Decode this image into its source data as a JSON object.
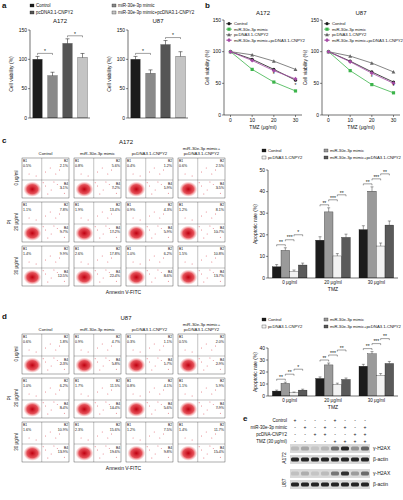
{
  "panel_labels": [
    "a",
    "b",
    "c",
    "d",
    "e"
  ],
  "chart_data": [
    {
      "type": "bar",
      "title": "A172",
      "y_label": "Cell viability (%)",
      "categories": [
        "Control",
        "miR-30e-3p mimic",
        "pcDNA3.1-CNPY2",
        "miR-30e-3p mimic+pcDNA3.1-CNPY2"
      ],
      "values": [
        100,
        72,
        127,
        103
      ],
      "errors": [
        5,
        6,
        8,
        7
      ],
      "colors": [
        "#1c1c1c",
        "#8a8a8a",
        "#555555",
        "#c4c4c4"
      ],
      "ylim": [
        0,
        150
      ],
      "yticks": [
        0,
        50,
        100,
        150
      ],
      "legend": "top",
      "tick_labels": "y",
      "annotations": [
        {
          "text": "*",
          "between": [
            0,
            1
          ]
        },
        {
          "text": "*",
          "between": [
            2,
            3
          ]
        }
      ]
    },
    {
      "type": "bar",
      "title": "U87",
      "y_label": "Cell viability (%)",
      "categories": [
        null,
        null,
        null,
        null
      ],
      "values": [
        100,
        76,
        125,
        105
      ],
      "errors": [
        5,
        6,
        7,
        8
      ],
      "colors": [
        "#1c1c1c",
        "#8a8a8a",
        "#555555",
        "#c4c4c4"
      ],
      "ylim": [
        0,
        150
      ],
      "yticks": [
        0,
        50,
        100,
        150
      ],
      "tick_labels": "y",
      "annotations": [
        {
          "text": "*",
          "between": [
            0,
            1
          ]
        },
        {
          "text": "*",
          "between": [
            2,
            3
          ]
        }
      ]
    },
    {
      "type": "line",
      "title": "A172",
      "x_label": "TMZ (μg/ml)",
      "y_label": "Cell viability (%)",
      "x": [
        0,
        10,
        20,
        30
      ],
      "xlim": [
        -3,
        33
      ],
      "xticks": [
        0,
        10,
        20,
        30
      ],
      "ylim": [
        0,
        150
      ],
      "yticks": [
        0,
        50,
        100,
        150
      ],
      "legend": "top",
      "series": [
        {
          "name": "Control",
          "color": "#1c1c1c",
          "marker": "circle",
          "values": [
            100,
            88,
            72,
            55
          ]
        },
        {
          "name": "miR-30e-3p mimic",
          "color": "#3cb44b",
          "marker": "square",
          "values": [
            100,
            72,
            52,
            38
          ]
        },
        {
          "name": "pcDNA3.1-CNPY2",
          "color": "#666666",
          "marker": "triangle",
          "values": [
            100,
            95,
            85,
            72
          ]
        },
        {
          "name": "miR-30e-3p mimic+pcDNA3.1-CNPY2",
          "color": "#a64ca6",
          "marker": "diamond",
          "values": [
            100,
            86,
            70,
            57
          ]
        }
      ],
      "annotations": [
        {
          "text": "*",
          "x": 20,
          "y": 61
        },
        {
          "text": "*",
          "x": 30,
          "y": 45
        }
      ]
    },
    {
      "type": "line",
      "title": "U87",
      "x_label": "TMZ (μg/ml)",
      "y_label": "Cell viability (%)",
      "x": [
        0,
        10,
        20,
        30
      ],
      "xlim": [
        -3,
        33
      ],
      "xticks": [
        0,
        10,
        20,
        30
      ],
      "ylim": [
        0,
        150
      ],
      "yticks": [
        0,
        50,
        100,
        150
      ],
      "legend": "top",
      "series": [
        {
          "name": "Control",
          "color": "#1c1c1c",
          "marker": "circle",
          "values": [
            100,
            85,
            68,
            52
          ]
        },
        {
          "name": "miR-30e-3p mimic",
          "color": "#3cb44b",
          "marker": "square",
          "values": [
            100,
            70,
            48,
            35
          ]
        },
        {
          "name": "pcDNA3.1-CNPY2",
          "color": "#666666",
          "marker": "triangle",
          "values": [
            100,
            93,
            82,
            68
          ]
        },
        {
          "name": "miR-30e-3p mimic+pcDNA3.1-CNPY2",
          "color": "#a64ca6",
          "marker": "diamond",
          "values": [
            100,
            84,
            66,
            50
          ]
        }
      ],
      "annotations": [
        {
          "text": "*",
          "x": 20,
          "y": 57
        },
        {
          "text": "*",
          "x": 30,
          "y": 42
        }
      ]
    },
    {
      "type": "bar",
      "x_label": "TMZ",
      "y_label": "Apoptotic rate (%)",
      "categories": [
        "0 μg/ml",
        "20 μg/ml",
        "30 μg/ml"
      ],
      "ylim": [
        0,
        50
      ],
      "yticks": [
        0,
        10,
        20,
        30,
        40,
        50
      ],
      "legend": "top",
      "series": [
        {
          "name": "Control",
          "color": "#1c1c1c",
          "values": [
            5.2,
            17.5,
            22.4
          ],
          "errors": [
            1.0,
            1.6,
            1.8
          ]
        },
        {
          "name": "miR-30e-3p mimic",
          "color": "#9a9a9a",
          "values": [
            12.8,
            30.6,
            40.2
          ],
          "errors": [
            1.2,
            1.9,
            2.0
          ]
        },
        {
          "name": "pcDNA3.1-CNPY2",
          "color": "#f2f2f2",
          "values": [
            3.1,
            10.2,
            14.8
          ],
          "errors": [
            0.6,
            1.1,
            1.4
          ]
        },
        {
          "name": "miR-30e-3p mimic+pcDNA3.1-CNPY2",
          "color": "#5a5a5a",
          "values": [
            6.0,
            18.8,
            24.5
          ],
          "errors": [
            0.9,
            1.5,
            1.9
          ]
        }
      ],
      "annotations": [
        {
          "text": "**",
          "group": 0,
          "between": [
            0,
            1
          ]
        },
        {
          "text": "***",
          "group": 0,
          "between": [
            1,
            2
          ]
        },
        {
          "text": "*",
          "group": 0,
          "between": [
            2,
            3
          ]
        },
        {
          "text": "**",
          "group": 1,
          "between": [
            0,
            1
          ]
        },
        {
          "text": "***",
          "group": 1,
          "between": [
            1,
            2
          ]
        },
        {
          "text": "**",
          "group": 1,
          "between": [
            2,
            3
          ]
        },
        {
          "text": "**",
          "group": 2,
          "between": [
            0,
            1
          ]
        },
        {
          "text": "***",
          "group": 2,
          "between": [
            1,
            2
          ]
        },
        {
          "text": "**",
          "group": 2,
          "between": [
            2,
            3
          ]
        }
      ]
    },
    {
      "type": "bar",
      "x_label": "TMZ",
      "y_label": "Apoptotic rate (%)",
      "categories": [
        "0 μg/ml",
        "20 μg/ml",
        "30 μg/ml"
      ],
      "ylim": [
        0,
        40
      ],
      "yticks": [
        0,
        10,
        20,
        30,
        40
      ],
      "legend": "top",
      "series": [
        {
          "name": "Control",
          "color": "#1c1c1c",
          "values": [
            4.1,
            14.6,
            24.8
          ],
          "errors": [
            0.8,
            1.3,
            1.6
          ]
        },
        {
          "name": "miR-30e-3p mimic",
          "color": "#9a9a9a",
          "values": [
            10.5,
            25.9,
            35.2
          ],
          "errors": [
            1.0,
            1.6,
            1.8
          ]
        },
        {
          "name": "pcDNA3.1-CNPY2",
          "color": "#f2f2f2",
          "values": [
            2.8,
            9.7,
            17.3
          ],
          "errors": [
            0.5,
            1.0,
            1.4
          ]
        },
        {
          "name": "miR-30e-3p mimic+pcDNA3.1-CNPY2",
          "color": "#5a5a5a",
          "values": [
            4.9,
            13.8,
            27.1
          ],
          "errors": [
            0.8,
            1.2,
            1.7
          ]
        }
      ],
      "annotations": [
        {
          "text": "**",
          "group": 0,
          "between": [
            0,
            1
          ]
        },
        {
          "text": "**",
          "group": 0,
          "between": [
            1,
            2
          ]
        },
        {
          "text": "*",
          "group": 0,
          "between": [
            2,
            3
          ]
        },
        {
          "text": "**",
          "group": 1,
          "between": [
            0,
            1
          ]
        },
        {
          "text": "***",
          "group": 1,
          "between": [
            1,
            2
          ]
        },
        {
          "text": "**",
          "group": 1,
          "between": [
            2,
            3
          ]
        },
        {
          "text": "**",
          "group": 2,
          "between": [
            0,
            1
          ]
        },
        {
          "text": "***",
          "group": 2,
          "between": [
            1,
            2
          ]
        },
        {
          "text": "**",
          "group": 2,
          "between": [
            2,
            3
          ]
        }
      ]
    }
  ],
  "flow": [
    {
      "title": "A172",
      "columns": [
        "Control",
        "miR-30e-3p mimic",
        "pcDNA3.1-CNPY2",
        "miR-30e-3p mimic+pcDNA3.1-CNPY2"
      ],
      "rows": [
        "0 μg/ml",
        "20 μg/ml",
        "30 μg/ml"
      ],
      "x_label": "Annexin V-FITC",
      "y_label": "PI",
      "quadrant_names": [
        "B1",
        "B2",
        "B4"
      ],
      "cells": [
        [
          [
            "0.5%",
            "2.1%",
            "3.1%"
          ],
          [
            "0.8%",
            "5.6%",
            "7.2%"
          ],
          [
            "0.4%",
            "1.2%",
            "1.9%"
          ],
          [
            "0.6%",
            "2.5%",
            "3.5%"
          ]
        ],
        [
          [
            "1.1%",
            "7.8%",
            "9.7%"
          ],
          [
            "1.9%",
            "13.4%",
            "17.2%"
          ],
          [
            "0.9%",
            "4.3%",
            "5.9%"
          ],
          [
            "1.2%",
            "8.1%",
            "10.7%"
          ]
        ],
        [
          [
            "1.4%",
            "9.9%",
            "12.5%"
          ],
          [
            "2.6%",
            "17.8%",
            "22.4%"
          ],
          [
            "1.0%",
            "6.2%",
            "8.6%"
          ],
          [
            "1.5%",
            "10.8%",
            "13.7%"
          ]
        ]
      ]
    },
    {
      "title": "U87",
      "columns": [
        "Control",
        "miR-30e-3p mimic",
        "pcDNA3.1-CNPY2",
        "miR-30e-3p mimic+pcDNA3.1-CNPY2"
      ],
      "rows": [
        "0 μg/ml",
        "20 μg/ml",
        "30 μg/ml"
      ],
      "x_label": "Annexin V-FITC",
      "y_label": "PI",
      "quadrant_names": [
        "B1",
        "B2",
        "B4"
      ],
      "cells": [
        [
          [
            "0.6%",
            "1.8%",
            "2.3%"
          ],
          [
            "0.9%",
            "4.7%",
            "5.8%"
          ],
          [
            "0.3%",
            "1.1%",
            "1.7%"
          ],
          [
            "0.5%",
            "2.0%",
            "2.9%"
          ]
        ],
        [
          [
            "1.0%",
            "6.2%",
            "8.4%"
          ],
          [
            "1.7%",
            "11.5%",
            "14.4%"
          ],
          [
            "0.8%",
            "4.1%",
            "5.6%"
          ],
          [
            "1.1%",
            "5.9%",
            "7.9%"
          ]
        ],
        [
          [
            "1.6%",
            "10.9%",
            "13.9%"
          ],
          [
            "2.3%",
            "15.6%",
            "19.6%"
          ],
          [
            "1.2%",
            "7.5%",
            "9.8%"
          ],
          [
            "1.4%",
            "11.7%",
            "15.4%"
          ]
        ]
      ]
    }
  ],
  "blot": {
    "row_labels": [
      "Control",
      "miR-30e-3p mimic",
      "pcDNA-CNPY2",
      "TMZ (30 μg/ml)"
    ],
    "signs": [
      [
        "+",
        "-",
        "-",
        "-",
        "+",
        "-",
        "-",
        "-"
      ],
      [
        "-",
        "+",
        "-",
        "+",
        "-",
        "+",
        "-",
        "+"
      ],
      [
        "-",
        "-",
        "+",
        "+",
        "-",
        "-",
        "+",
        "+"
      ],
      [
        "-",
        "-",
        "-",
        "-",
        "+",
        "+",
        "+",
        "+"
      ]
    ],
    "cell_lines": [
      {
        "name": "A172",
        "bands": [
          {
            "name": "γ-H2AX",
            "intensity": [
              0.15,
              0.25,
              0.1,
              0.18,
              0.55,
              0.9,
              0.35,
              0.6
            ]
          },
          {
            "name": "β-actin",
            "intensity": [
              0.9,
              0.9,
              0.9,
              0.9,
              0.9,
              0.9,
              0.9,
              0.9
            ]
          }
        ]
      },
      {
        "name": "U87",
        "bands": [
          {
            "name": "γ-H2AX",
            "intensity": [
              0.12,
              0.22,
              0.1,
              0.15,
              0.5,
              0.85,
              0.3,
              0.55
            ]
          },
          {
            "name": "β-actin",
            "intensity": [
              0.9,
              0.9,
              0.9,
              0.9,
              0.9,
              0.9,
              0.9,
              0.9
            ]
          }
        ]
      }
    ]
  }
}
